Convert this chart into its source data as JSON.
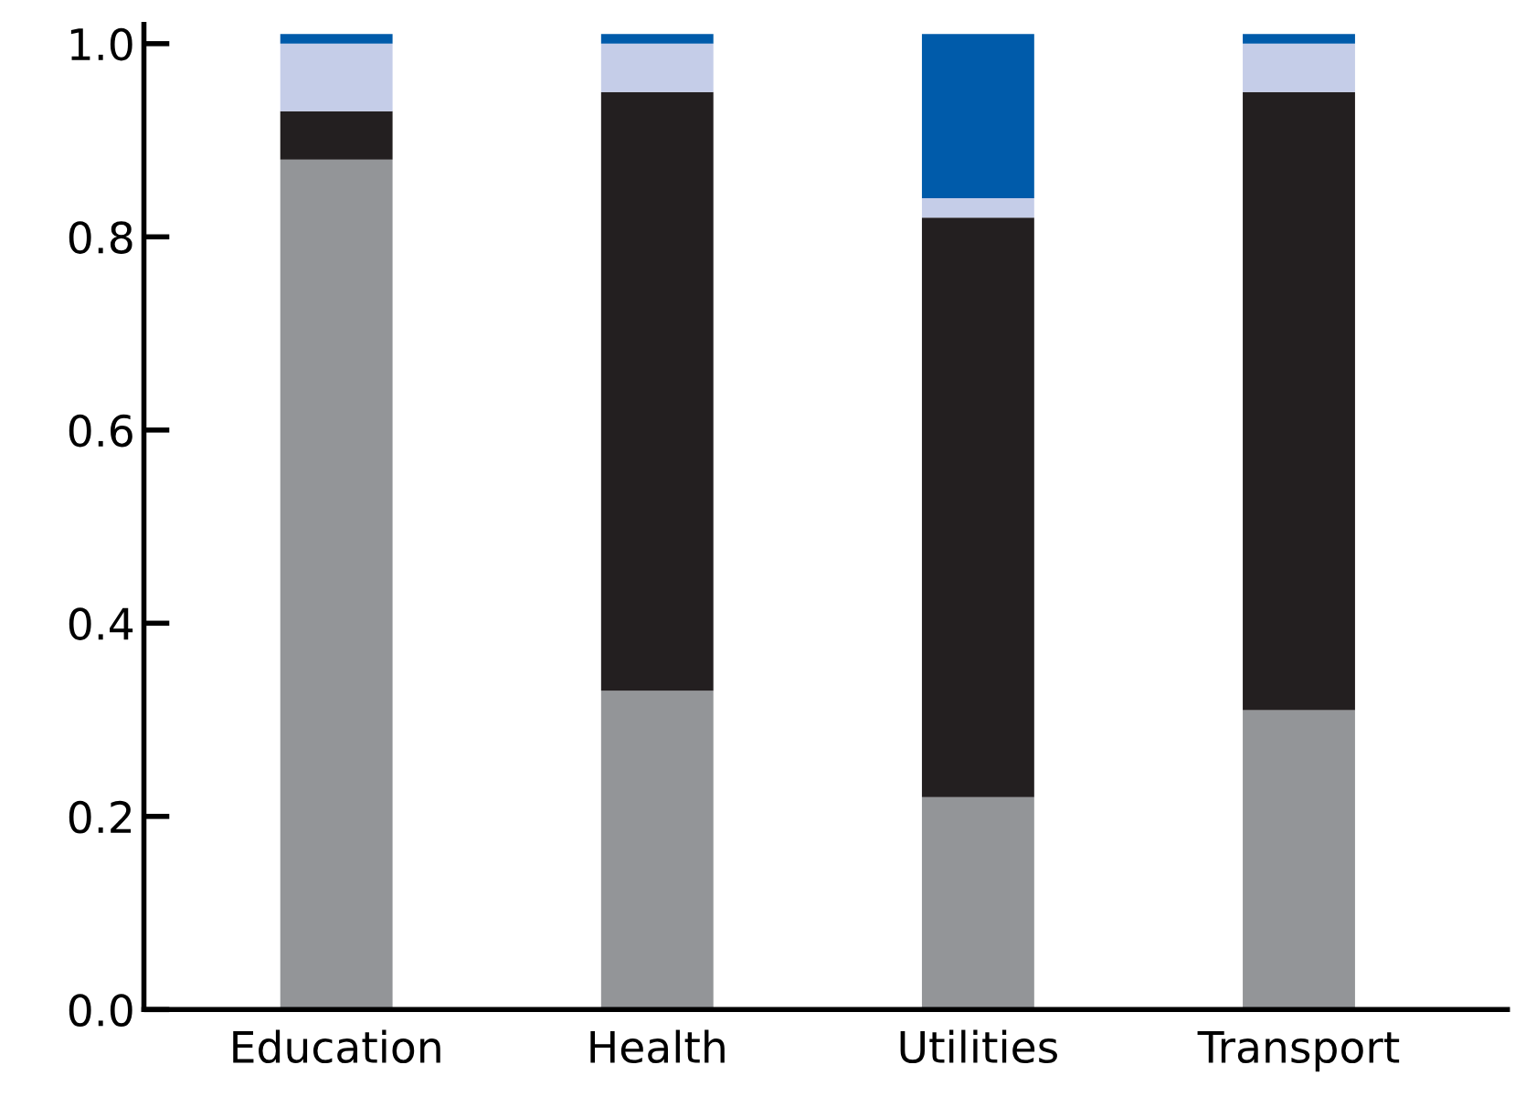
{
  "chart_data": {
    "type": "bar",
    "stacked": true,
    "categories": [
      "Education",
      "Health",
      "Utilities",
      "Transport"
    ],
    "series": [
      {
        "color": "#939598",
        "values": [
          0.88,
          0.33,
          0.22,
          0.31
        ]
      },
      {
        "color": "#231f20",
        "values": [
          0.05,
          0.62,
          0.6,
          0.64
        ]
      },
      {
        "color": "#c5cde8",
        "values": [
          0.07,
          0.05,
          0.02,
          0.05
        ]
      },
      {
        "color": "#005baa",
        "values": [
          0.01,
          0.01,
          0.17,
          0.01
        ]
      }
    ],
    "ylim": [
      0,
      1.02
    ],
    "yticks": [
      {
        "value": 0,
        "label": "0.0"
      },
      0.2,
      0.4,
      0.6,
      0.8,
      {
        "value": 1,
        "label": "1.0"
      }
    ],
    "grid": false,
    "legend": false
  }
}
